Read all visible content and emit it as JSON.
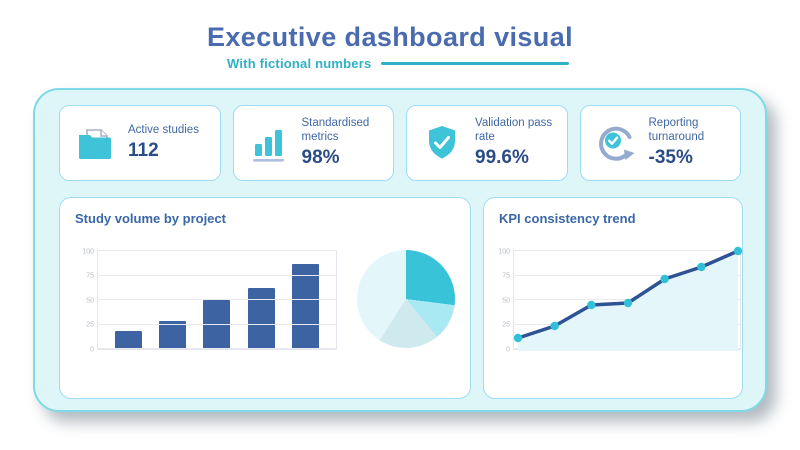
{
  "header": {
    "title": "Executive dashboard visual",
    "subtitle": "With fictional numbers"
  },
  "colors": {
    "accent_blue": "#4a6cae",
    "accent_teal": "#2fb0c6",
    "container_bg": "#dff6f9",
    "card_border": "#9edcf2",
    "kpi_value": "#2b4c87",
    "bar_color": "#3d63a2",
    "line_color": "#2d5394",
    "marker_color": "#32c0d8",
    "area_fill": "#e4f6fa"
  },
  "kpi_cards": [
    {
      "icon": "folder-icon",
      "label": "Active studies",
      "value": "112"
    },
    {
      "icon": "bar-chart-icon",
      "label": "Standardised metrics",
      "value": "98%"
    },
    {
      "icon": "shield-check-icon",
      "label": "Validation pass rate",
      "value": "99.6%"
    },
    {
      "icon": "refresh-check-icon",
      "label": "Reporting turnaround",
      "value": "-35%"
    }
  ],
  "panels": {
    "left": {
      "title": "Study volume by project"
    },
    "right": {
      "title": "KPI consistency trend"
    }
  },
  "chart_data": [
    {
      "type": "bar",
      "title": "Study volume by project",
      "values": [
        18,
        29,
        50,
        62,
        87
      ],
      "x_tick_labels": [],
      "yticks": [
        0,
        25,
        50,
        75,
        100
      ],
      "ylim": [
        0,
        100
      ],
      "grid": true,
      "bar_color": "#3d63a2"
    },
    {
      "type": "pie",
      "title": "Study volume by project (share)",
      "slices": [
        {
          "value": 27,
          "color": "#39c3d9"
        },
        {
          "value": 12,
          "color": "#a9e9f3"
        },
        {
          "value": 20,
          "color": "#cfeaee"
        },
        {
          "value": 41,
          "color": "#e3f7fa"
        }
      ],
      "start_angle_deg": 0,
      "labels": "none"
    },
    {
      "type": "line",
      "title": "KPI consistency trend",
      "values": [
        13,
        25,
        46,
        48,
        72,
        84,
        100
      ],
      "x_tick_labels": [],
      "yticks": [
        0,
        25,
        50,
        75,
        100
      ],
      "ylim": [
        0,
        100
      ],
      "grid": true,
      "line_color": "#2d5394",
      "marker_color": "#32c0d8",
      "area_fill": "#e4f6fa",
      "legend": "none"
    }
  ]
}
